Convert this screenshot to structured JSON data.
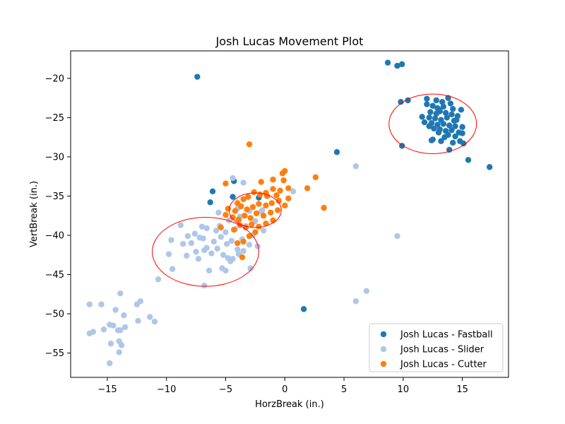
{
  "chart_data": {
    "type": "scatter",
    "title": "Josh Lucas Movement Plot",
    "xlabel": "HorzBreak (in.)",
    "ylabel": "VertBreak (in.)",
    "xlim": [
      -18.1,
      18.9
    ],
    "ylim": [
      -58.1,
      -16.5
    ],
    "xticks": [
      -15,
      -10,
      -5,
      0,
      5,
      10,
      15
    ],
    "yticks": [
      -20,
      -25,
      -30,
      -35,
      -40,
      -45,
      -50,
      -55
    ],
    "xtick_labels": [
      "−15",
      "−10",
      "−5",
      "0",
      "5",
      "10",
      "15"
    ],
    "ytick_labels": [
      "−20",
      "−25",
      "−30",
      "−35",
      "−40",
      "−45",
      "−50",
      "−55"
    ],
    "grid": false,
    "legend_position": "bottom-right",
    "colors": {
      "fastball": "#1f77b4",
      "slider": "#aec7e8",
      "cutter": "#ff7f0e",
      "ellipse": "#ff0000"
    },
    "series": [
      {
        "name": "Josh Lucas - Fastball",
        "color": "#1f77b4",
        "points": [
          [
            8.7,
            -18.0
          ],
          [
            9.5,
            -18.4
          ],
          [
            9.9,
            -18.2
          ],
          [
            -7.4,
            -19.8
          ],
          [
            9.8,
            -23.0
          ],
          [
            10.4,
            -22.8
          ],
          [
            12.0,
            -22.6
          ],
          [
            13.8,
            -22.5
          ],
          [
            12.8,
            -22.8
          ],
          [
            13.3,
            -23.0
          ],
          [
            14.0,
            -23.2
          ],
          [
            12.5,
            -23.5
          ],
          [
            12.9,
            -23.8
          ],
          [
            13.4,
            -23.6
          ],
          [
            14.2,
            -23.9
          ],
          [
            14.9,
            -24.0
          ],
          [
            12.3,
            -24.3
          ],
          [
            12.8,
            -24.5
          ],
          [
            13.1,
            -24.2
          ],
          [
            13.6,
            -24.4
          ],
          [
            14.1,
            -24.6
          ],
          [
            14.6,
            -24.8
          ],
          [
            11.6,
            -24.9
          ],
          [
            12.2,
            -25.0
          ],
          [
            12.7,
            -25.1
          ],
          [
            13.2,
            -25.3
          ],
          [
            13.7,
            -25.0
          ],
          [
            14.3,
            -25.4
          ],
          [
            11.8,
            -25.6
          ],
          [
            12.4,
            -25.7
          ],
          [
            12.9,
            -25.9
          ],
          [
            13.4,
            -25.8
          ],
          [
            13.9,
            -26.0
          ],
          [
            14.4,
            -26.1
          ],
          [
            15.0,
            -26.2
          ],
          [
            12.6,
            -26.4
          ],
          [
            13.1,
            -26.5
          ],
          [
            13.6,
            -26.7
          ],
          [
            14.1,
            -26.6
          ],
          [
            14.7,
            -26.9
          ],
          [
            13.0,
            -26.9
          ],
          [
            13.8,
            -27.2
          ],
          [
            14.4,
            -27.4
          ],
          [
            15.0,
            -27.0
          ],
          [
            12.5,
            -27.8
          ],
          [
            13.2,
            -28.0
          ],
          [
            14.2,
            -28.2
          ],
          [
            14.8,
            -28.0
          ],
          [
            15.1,
            -28.3
          ],
          [
            12.4,
            -27.9
          ],
          [
            13.9,
            -29.1
          ],
          [
            9.9,
            -28.6
          ],
          [
            15.5,
            -30.4
          ],
          [
            17.3,
            -31.3
          ],
          [
            4.4,
            -29.4
          ],
          [
            -6.1,
            -34.4
          ],
          [
            -4.3,
            -33.1
          ],
          [
            -6.3,
            -35.8
          ],
          [
            -4.4,
            -35.1
          ],
          [
            -2.2,
            -35.2
          ],
          [
            1.6,
            -49.4
          ],
          [
            12.0,
            -23.3
          ],
          [
            13.0,
            -24.0
          ],
          [
            14.5,
            -25.3
          ],
          [
            13.5,
            -27.5
          ],
          [
            12.2,
            -26.1
          ]
        ]
      },
      {
        "name": "Josh Lucas - Slider",
        "color": "#aec7e8",
        "points": [
          [
            -16.5,
            -48.8
          ],
          [
            -15.5,
            -48.8
          ],
          [
            -12.2,
            -48.4
          ],
          [
            -12.5,
            -48.8
          ],
          [
            -13.9,
            -47.4
          ],
          [
            -14.3,
            -49.5
          ],
          [
            -13.6,
            -50.2
          ],
          [
            -11.4,
            -50.4
          ],
          [
            -11.0,
            -51.0
          ],
          [
            -12.4,
            -50.9
          ],
          [
            -13.5,
            -51.7
          ],
          [
            -14.8,
            -51.4
          ],
          [
            -14.5,
            -51.5
          ],
          [
            -14.1,
            -52.1
          ],
          [
            -13.9,
            -52.1
          ],
          [
            -15.3,
            -52.0
          ],
          [
            -16.5,
            -52.5
          ],
          [
            -16.2,
            -52.3
          ],
          [
            -14.0,
            -53.5
          ],
          [
            -14.7,
            -53.8
          ],
          [
            -13.8,
            -54.0
          ],
          [
            -14.0,
            -54.9
          ],
          [
            -14.8,
            -56.3
          ],
          [
            -10.7,
            -45.6
          ],
          [
            -9.8,
            -42.4
          ],
          [
            -9.6,
            -40.6
          ],
          [
            -9.5,
            -44.3
          ],
          [
            -8.8,
            -38.7
          ],
          [
            -8.6,
            -41.1
          ],
          [
            -8.3,
            -42.6
          ],
          [
            -8.2,
            -40.1
          ],
          [
            -7.9,
            -41.0
          ],
          [
            -7.6,
            -39.8
          ],
          [
            -7.5,
            -42.1
          ],
          [
            -7.3,
            -43.0
          ],
          [
            -7.0,
            -38.9
          ],
          [
            -6.9,
            -40.4
          ],
          [
            -6.8,
            -41.9
          ],
          [
            -6.6,
            -39.1
          ],
          [
            -6.4,
            -44.5
          ],
          [
            -6.2,
            -42.3
          ],
          [
            -6.0,
            -40.8
          ],
          [
            -5.8,
            -39.4
          ],
          [
            -5.7,
            -41.7
          ],
          [
            -5.5,
            -38.8
          ],
          [
            -5.4,
            -40.2
          ],
          [
            -5.2,
            -42.5
          ],
          [
            -5.0,
            -39.6
          ],
          [
            -4.9,
            -41.1
          ],
          [
            -4.7,
            -38.1
          ],
          [
            -4.5,
            -40.7
          ],
          [
            -4.4,
            -43.0
          ],
          [
            -4.2,
            -39.2
          ],
          [
            -4.0,
            -41.8
          ],
          [
            -3.8,
            -37.6
          ],
          [
            -3.6,
            -40.5
          ],
          [
            -3.5,
            -42.0
          ],
          [
            -3.3,
            -38.8
          ],
          [
            -3.0,
            -41.2
          ],
          [
            -2.9,
            -44.2
          ],
          [
            -2.7,
            -40.0
          ],
          [
            -2.5,
            -38.2
          ],
          [
            -2.3,
            -41.4
          ],
          [
            -2.0,
            -37.0
          ],
          [
            -1.8,
            -39.4
          ],
          [
            -5.3,
            -44.2
          ],
          [
            -5.0,
            -44.5
          ],
          [
            -4.6,
            -43.3
          ],
          [
            -6.8,
            -46.4
          ],
          [
            -4.4,
            -32.7
          ],
          [
            -3.5,
            -33.3
          ],
          [
            -4.0,
            -36.6
          ],
          [
            0.7,
            -34.4
          ],
          [
            6.0,
            -31.2
          ],
          [
            9.5,
            -40.1
          ],
          [
            6.0,
            -48.4
          ],
          [
            6.9,
            -47.1
          ],
          [
            -1.9,
            -36.8
          ],
          [
            -3.0,
            -36.9
          ],
          [
            -5.6,
            -37.1
          ],
          [
            -6.6,
            -41.6
          ],
          [
            -7.2,
            -40.3
          ],
          [
            -4.8,
            -42.9
          ],
          [
            -3.9,
            -42.4
          ]
        ]
      },
      {
        "name": "Josh Lucas - Cutter",
        "color": "#ff7f0e",
        "points": [
          [
            -3.0,
            -28.4
          ],
          [
            0.0,
            -31.8
          ],
          [
            -0.2,
            -32.1
          ],
          [
            -0.1,
            -33.0
          ],
          [
            -1.0,
            -32.9
          ],
          [
            -2.0,
            -33.2
          ],
          [
            -5.0,
            -33.4
          ],
          [
            2.6,
            -32.6
          ],
          [
            1.9,
            -34.0
          ],
          [
            0.3,
            -34.0
          ],
          [
            -0.4,
            -34.3
          ],
          [
            -1.0,
            -34.1
          ],
          [
            -1.6,
            -34.6
          ],
          [
            -2.1,
            -34.8
          ],
          [
            -2.6,
            -34.5
          ],
          [
            -3.1,
            -35.1
          ],
          [
            -3.5,
            -35.4
          ],
          [
            -4.0,
            -35.9
          ],
          [
            0.3,
            -35.3
          ],
          [
            -0.5,
            -35.6
          ],
          [
            -1.1,
            -35.9
          ],
          [
            -1.6,
            -36.2
          ],
          [
            -2.2,
            -36.0
          ],
          [
            -2.7,
            -36.4
          ],
          [
            -3.2,
            -36.7
          ],
          [
            -3.7,
            -36.3
          ],
          [
            -4.2,
            -36.9
          ],
          [
            -4.8,
            -36.6
          ],
          [
            0.0,
            -36.2
          ],
          [
            -0.6,
            -36.8
          ],
          [
            -1.2,
            -37.1
          ],
          [
            -1.8,
            -37.5
          ],
          [
            -2.4,
            -37.2
          ],
          [
            -2.9,
            -37.8
          ],
          [
            -3.4,
            -37.5
          ],
          [
            -3.9,
            -38.0
          ],
          [
            -4.4,
            -37.7
          ],
          [
            -5.0,
            -37.4
          ],
          [
            -1.0,
            -38.1
          ],
          [
            -1.6,
            -38.5
          ],
          [
            -2.2,
            -38.9
          ],
          [
            -2.8,
            -38.6
          ],
          [
            -3.3,
            -39.0
          ],
          [
            -3.8,
            -38.7
          ],
          [
            -4.3,
            -39.3
          ],
          [
            -2.5,
            -39.6
          ],
          [
            -3.0,
            -40.1
          ],
          [
            -3.5,
            -40.8
          ],
          [
            -4.0,
            -41.0
          ],
          [
            -3.6,
            -42.8
          ],
          [
            3.3,
            -36.5
          ],
          [
            -5.4,
            -39.0
          ],
          [
            -1.5,
            -35.0
          ],
          [
            -0.7,
            -34.9
          ]
        ]
      }
    ],
    "ellipses": [
      {
        "series": "Josh Lucas - Fastball",
        "center": [
          12.5,
          -25.8
        ],
        "semi_x": 3.7,
        "semi_y": 3.8
      },
      {
        "series": "Josh Lucas - Slider",
        "center": [
          -6.7,
          -42.1
        ],
        "semi_x": 4.5,
        "semi_y": 4.4
      },
      {
        "series": "Josh Lucas - Cutter",
        "center": [
          -2.5,
          -36.8
        ],
        "semi_x": 2.2,
        "semi_y": 2.2
      }
    ]
  }
}
